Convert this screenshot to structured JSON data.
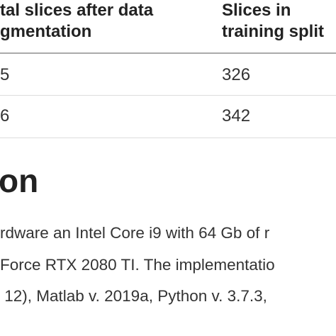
{
  "table": {
    "header": [
      "tal slices after data\ngmentation",
      "Slices in\ntraining split"
    ],
    "rows": [
      [
        "5",
        "326"
      ],
      [
        "6",
        "342"
      ]
    ]
  },
  "section": {
    "title": "on",
    "lines": [
      "rdware an Intel Core i9 with 64 Gb of r",
      "Force RTX 2080 TI. The implementatio",
      " 12), Matlab v. 2019a, Python v. 3.7.3,"
    ]
  }
}
